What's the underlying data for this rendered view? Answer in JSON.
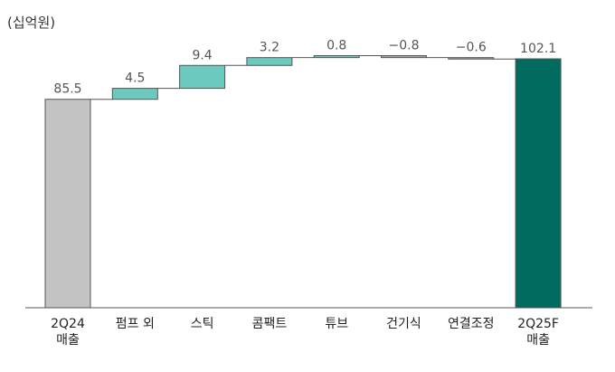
{
  "chart_data": {
    "type": "bar",
    "subtype": "waterfall",
    "unit_label": "(십억원)",
    "ylim": [
      0,
      110
    ],
    "grid": false,
    "legend": "none",
    "categories": [
      [
        "2Q24",
        "매출"
      ],
      [
        "펌프 외"
      ],
      [
        "스틱"
      ],
      [
        "콤팩트"
      ],
      [
        "튜브"
      ],
      [
        "건기식"
      ],
      [
        "연결조정"
      ],
      [
        "2Q25F",
        "매출"
      ]
    ],
    "values": [
      85.5,
      4.5,
      9.4,
      3.2,
      0.8,
      -0.8,
      -0.6,
      102.1
    ],
    "value_labels": [
      "85.5",
      "4.5",
      "9.4",
      "3.2",
      "0.8",
      "−0.8",
      "−0.6",
      "102.1"
    ],
    "bar_kinds": [
      "total",
      "delta",
      "delta",
      "delta",
      "delta",
      "delta",
      "delta",
      "total"
    ],
    "colors": {
      "start_total": "#c4c4c4",
      "positive": "#6cc9bd",
      "negative": "#a6a6a6",
      "end_total": "#006b5e",
      "outline": "#555555",
      "connector": "#555555",
      "axis": "#555555"
    }
  }
}
